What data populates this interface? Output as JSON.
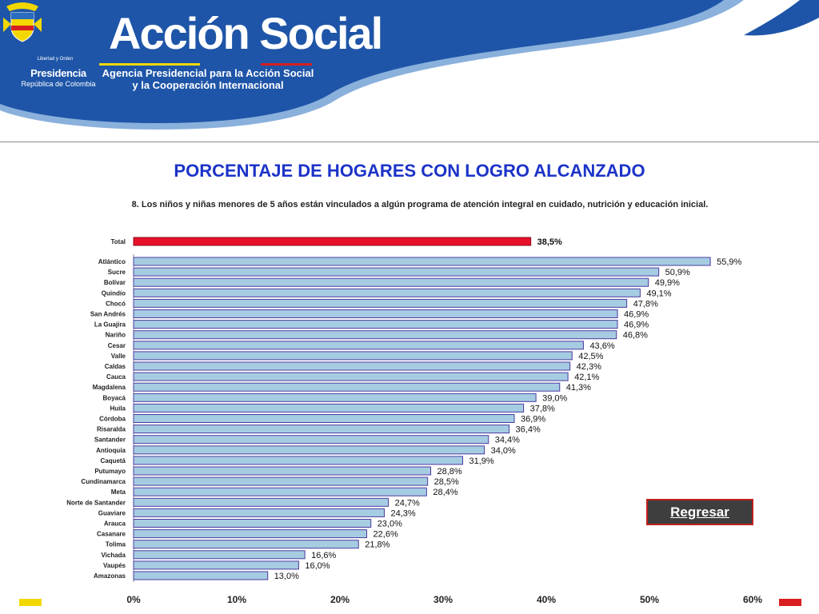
{
  "header": {
    "logo_name": "coat-of-arms-icon",
    "motto": "Libertad y Orden",
    "presidencia": "Presidencia",
    "republica": "República de Colombia",
    "org_name": "Acción Social",
    "org_subtitle_line1": "Agencia Presidencial para la Acción Social",
    "org_subtitle_line2": "y la Cooperación Internacional",
    "colors": {
      "band": "#1e55a8",
      "band_light": "#8ab0dc",
      "stripe_yellow": "#f2d800",
      "stripe_red": "#d81e1e"
    }
  },
  "page_title": "PORCENTAJE DE HOGARES CON LOGRO ALCANZADO",
  "back_button": {
    "label": "Regresar"
  },
  "chart_data": {
    "type": "bar",
    "orientation": "horizontal",
    "title": "8. Los niños y niñas menores de 5 años están vinculados a algún programa de atención integral en cuidado, nutrición y educación inicial.",
    "total": {
      "label": "Total",
      "value": 38.5,
      "value_label": "38,5%",
      "color": "#e8102a"
    },
    "categories": [
      "Atlántico",
      "Sucre",
      "Bolívar",
      "Quindío",
      "Chocó",
      "San Andrés",
      "La Guajira",
      "Nariño",
      "Cesar",
      "Valle",
      "Caldas",
      "Cauca",
      "Magdalena",
      "Boyacá",
      "Huila",
      "Córdoba",
      "Risaralda",
      "Santander",
      "Antioquia",
      "Caquetá",
      "Putumayo",
      "Cundinamarca",
      "Meta",
      "Norte de Santander",
      "Guaviare",
      "Arauca",
      "Casanare",
      "Tolima",
      "Vichada",
      "Vaupés",
      "Amazonas"
    ],
    "values": [
      55.9,
      50.9,
      49.9,
      49.1,
      47.8,
      46.9,
      46.9,
      46.8,
      43.6,
      42.5,
      42.3,
      42.1,
      41.3,
      39.0,
      37.8,
      36.9,
      36.4,
      34.4,
      34.0,
      31.9,
      28.8,
      28.5,
      28.4,
      24.7,
      24.3,
      23.0,
      22.6,
      21.8,
      16.6,
      16.0,
      13.0
    ],
    "value_labels": [
      "55,9%",
      "50,9%",
      "49,9%",
      "49,1%",
      "47,8%",
      "46,9%",
      "46,9%",
      "46,8%",
      "43,6%",
      "42,5%",
      "42,3%",
      "42,1%",
      "41,3%",
      "39,0%",
      "37,8%",
      "36,9%",
      "36,4%",
      "34,4%",
      "34,0%",
      "31,9%",
      "28,8%",
      "28,5%",
      "28,4%",
      "24,7%",
      "24,3%",
      "23,0%",
      "22,6%",
      "21,8%",
      "16,6%",
      "16,0%",
      "13,0%"
    ],
    "bar_color": "#a6cce2",
    "bar_border": "#4a3aa0",
    "xlim": [
      0,
      60
    ],
    "xticks": [
      0,
      10,
      20,
      30,
      40,
      50,
      60
    ],
    "xtick_labels": [
      "0%",
      "10%",
      "20%",
      "30%",
      "40%",
      "50%",
      "60%"
    ],
    "grid": false,
    "legend": "none"
  }
}
